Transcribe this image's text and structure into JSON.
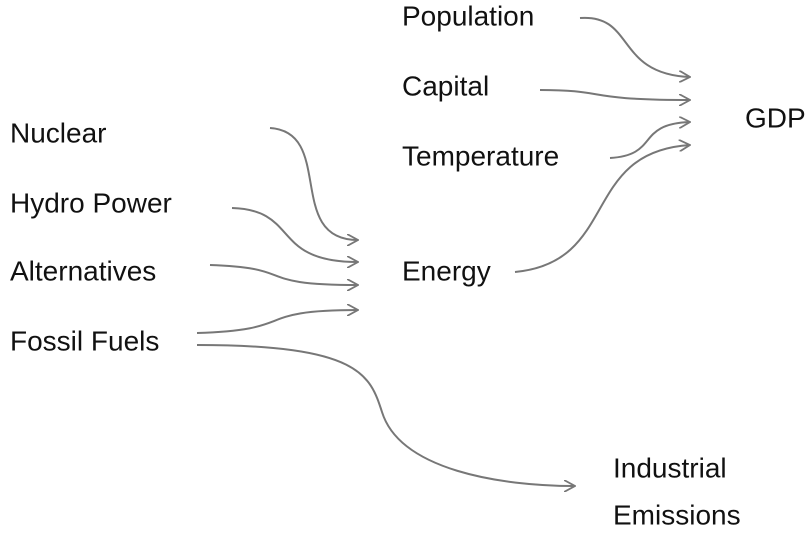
{
  "nodes": [
    {
      "label": "Population"
    },
    {
      "label": "Capital"
    },
    {
      "label": "Temperature"
    },
    {
      "label": "GDP"
    },
    {
      "label": "Nuclear"
    },
    {
      "label": "Hydro Power"
    },
    {
      "label": "Alternatives"
    },
    {
      "label": "Fossil Fuels"
    },
    {
      "label": "Energy"
    },
    {
      "label_lines": [
        "Industrial",
        "Emissions"
      ]
    }
  ]
}
